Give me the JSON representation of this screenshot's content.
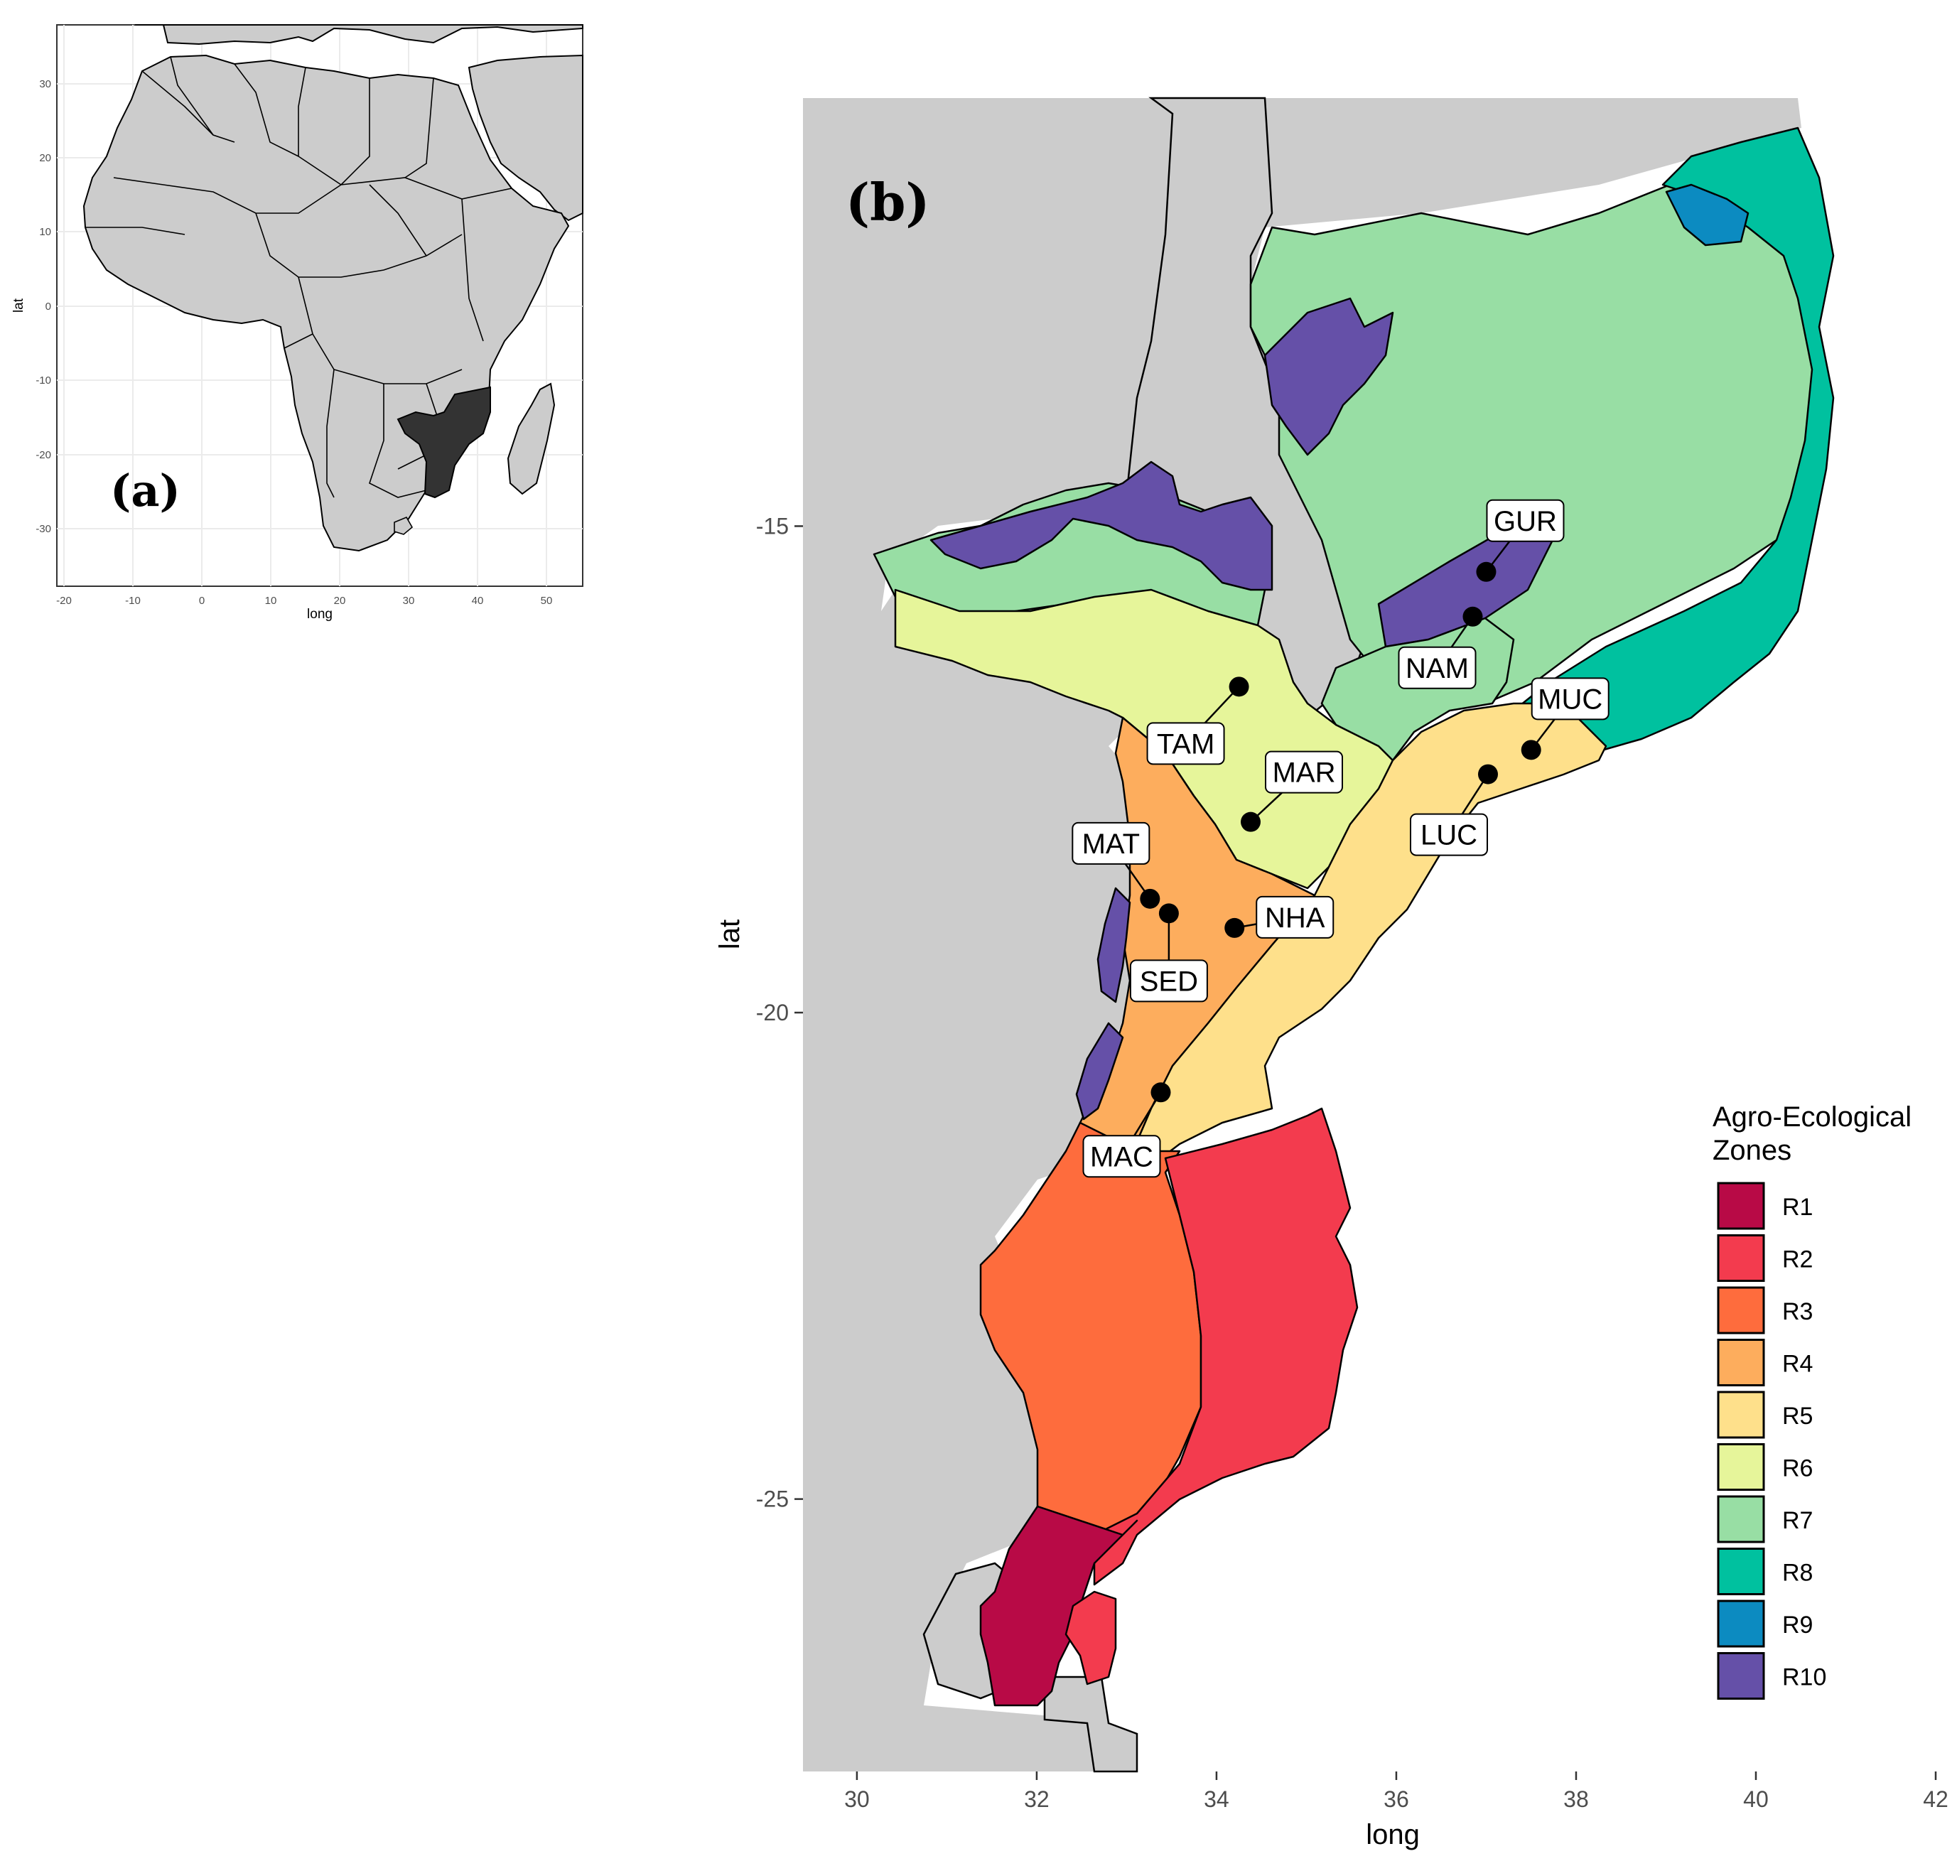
{
  "panel_a": {
    "letter": "(a)",
    "xlabel": "long",
    "ylabel": "lat",
    "x_ticks": [
      "-20",
      "-10",
      "0",
      "10",
      "20",
      "30",
      "40",
      "50"
    ],
    "y_ticks": [
      "30",
      "20",
      "10",
      "0",
      "-10",
      "-20",
      "-30"
    ],
    "highlighted_country": "Mozambique"
  },
  "panel_b": {
    "letter": "(b)",
    "xlabel": "long",
    "ylabel": "lat",
    "x_ticks": [
      "30",
      "32",
      "34",
      "36",
      "38",
      "40",
      "42"
    ],
    "y_ticks": [
      "-15",
      "-20",
      "-25"
    ],
    "xlim": [
      29.4,
      42
    ],
    "ylim": [
      -27.8,
      -10.6
    ],
    "sites": [
      {
        "code": "GUR",
        "lon": 37.0,
        "lat": -15.47
      },
      {
        "code": "NAM",
        "lon": 36.85,
        "lat": -15.93
      },
      {
        "code": "MUC",
        "lon": 37.5,
        "lat": -17.3
      },
      {
        "code": "LUC",
        "lon": 37.02,
        "lat": -17.55
      },
      {
        "code": "TAM",
        "lon": 34.25,
        "lat": -16.65
      },
      {
        "code": "MAR",
        "lon": 34.38,
        "lat": -18.04
      },
      {
        "code": "MAT",
        "lon": 33.26,
        "lat": -18.83
      },
      {
        "code": "SED",
        "lon": 33.47,
        "lat": -18.98
      },
      {
        "code": "NHA",
        "lon": 34.2,
        "lat": -19.13
      },
      {
        "code": "MAC",
        "lon": 33.38,
        "lat": -20.82
      }
    ]
  },
  "legend": {
    "title_line1": "Agro-Ecological",
    "title_line2": "Zones",
    "items": [
      {
        "label": "R1",
        "color": "#b80a46"
      },
      {
        "label": "R2",
        "color": "#f33b4e"
      },
      {
        "label": "R3",
        "color": "#fe6c3d"
      },
      {
        "label": "R4",
        "color": "#fdad5d"
      },
      {
        "label": "R5",
        "color": "#fee08b"
      },
      {
        "label": "R6",
        "color": "#e6f59a"
      },
      {
        "label": "R7",
        "color": "#98deA4"
      },
      {
        "label": "R8",
        "color": "#00c19f"
      },
      {
        "label": "R9",
        "color": "#0c8bc1"
      },
      {
        "label": "R10",
        "color": "#6550a8"
      }
    ]
  },
  "colors": {
    "land": "#cccccc",
    "highlight": "#333333",
    "border": "#000000"
  }
}
